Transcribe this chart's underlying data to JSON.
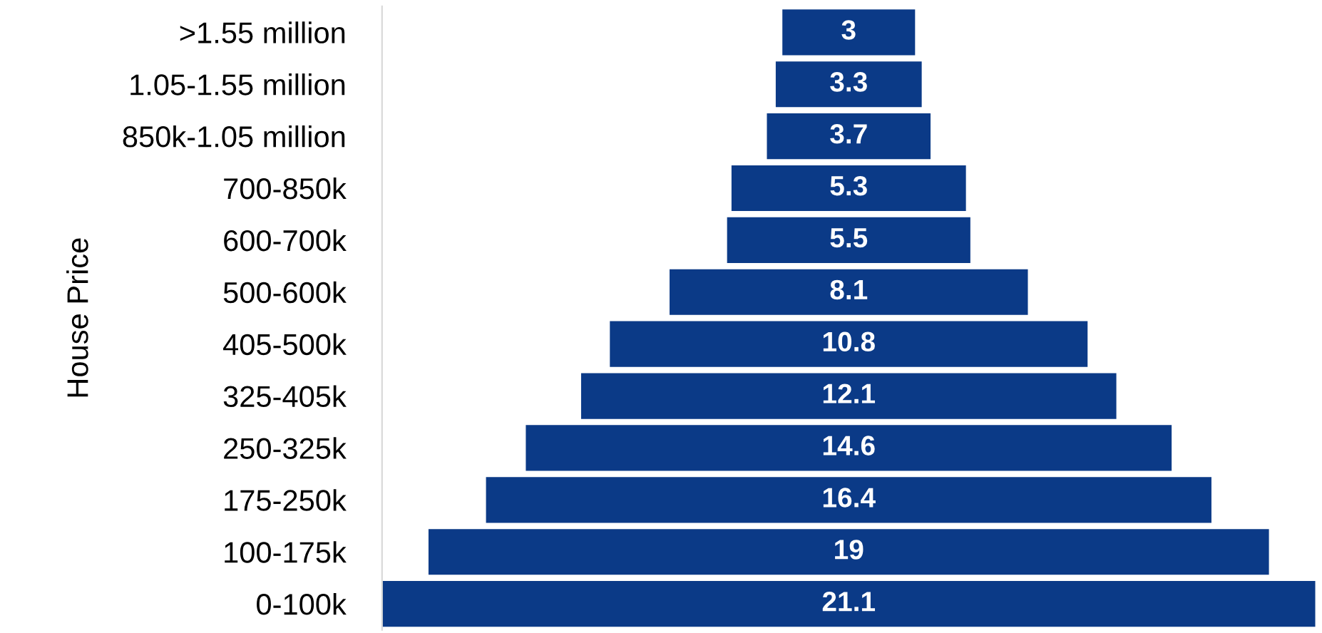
{
  "chart_data": {
    "type": "other",
    "ylabel": "House Price",
    "categories": [
      ">1.55 million",
      "1.05-1.55 million",
      "850k-1.05 million",
      "700-850k",
      "600-700k",
      "500-600k",
      "405-500k",
      "325-405k",
      "250-325k",
      "175-250k",
      "100-175k",
      "0-100k"
    ],
    "values": [
      3,
      3.3,
      3.7,
      5.3,
      5.5,
      8.1,
      10.8,
      12.1,
      14.6,
      16.4,
      19,
      21.1
    ],
    "color": "#0b3a87",
    "data_labels": true
  }
}
